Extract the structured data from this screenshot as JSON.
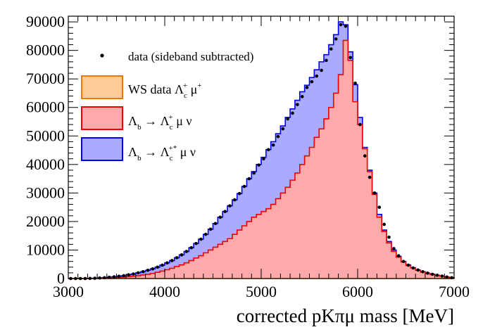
{
  "chart_data": {
    "type": "bar",
    "xlabel": "corrected pKπμ mass [MeV]",
    "ylabel": "",
    "xlim": [
      3000,
      7000
    ],
    "ylim": [
      0,
      92000
    ],
    "x_ticks": [
      3000,
      4000,
      5000,
      6000,
      7000
    ],
    "y_ticks": [
      0,
      10000,
      20000,
      30000,
      40000,
      50000,
      60000,
      70000,
      80000,
      90000
    ],
    "bin_width": 50,
    "grid": false,
    "legend_position": "top-left",
    "legend": {
      "data": "data (sideband subtracted)",
      "ws": "WS data Λc+ μ+",
      "lc": "Λb → Λc+ μ ν",
      "lcstar": "Λb → Λc+* μ ν"
    },
    "series": [
      {
        "key": "lcstar",
        "label": "Λb → Λc+* μ ν",
        "color": "#aaaaff",
        "line_color": "#0000ee",
        "style": "stacked-histogram-total",
        "values": [
          0,
          0,
          0,
          0,
          50,
          100,
          200,
          300,
          450,
          600,
          800,
          1000,
          1300,
          1600,
          2000,
          2400,
          2900,
          3400,
          4000,
          4700,
          5500,
          6300,
          7300,
          8300,
          9500,
          10800,
          12300,
          13800,
          15500,
          17300,
          19300,
          21500,
          23500,
          25500,
          27600,
          29800,
          32300,
          35000,
          37500,
          40000,
          42500,
          45200,
          48000,
          50800,
          53500,
          56500,
          59500,
          62500,
          65500,
          67800,
          70500,
          73200,
          76000,
          78500,
          82000,
          85500,
          90000,
          89000,
          79500,
          68000,
          56500,
          46000,
          38000,
          30000,
          22500,
          17000,
          13000,
          10000,
          7800,
          6000,
          4800,
          3800,
          3000,
          2400,
          1900,
          1500,
          1150,
          850,
          550,
          300
        ]
      },
      {
        "key": "lc",
        "label": "Λb → Λc+ μ ν",
        "color": "#ffaaaa",
        "line_color": "#ee0000",
        "style": "histogram",
        "values": [
          0,
          0,
          0,
          0,
          20,
          40,
          80,
          130,
          200,
          280,
          380,
          500,
          650,
          800,
          1000,
          1250,
          1500,
          1800,
          2200,
          2600,
          3100,
          3600,
          4200,
          4800,
          5500,
          6300,
          7200,
          8000,
          9000,
          10000,
          11000,
          12000,
          13000,
          14000,
          15500,
          17000,
          18500,
          20000,
          21500,
          22500,
          23500,
          24500,
          26000,
          28000,
          30000,
          32000,
          34500,
          37000,
          40000,
          43000,
          46000,
          49500,
          52500,
          56000,
          60000,
          65000,
          71500,
          83500,
          76500,
          62000,
          54000,
          45500,
          37500,
          29500,
          21500,
          16500,
          12500,
          9500,
          7500,
          5800,
          4600,
          3700,
          2900,
          2300,
          1800,
          1400,
          1100,
          800,
          500,
          300
        ]
      },
      {
        "key": "ws",
        "label": "WS data Λc+ μ+",
        "color": "#ffcc99",
        "line_color": "#ee7700",
        "style": "histogram",
        "values": [
          0,
          0,
          0,
          0,
          0,
          0,
          0,
          0,
          0,
          0,
          0,
          0,
          0,
          0,
          0,
          0,
          0,
          0,
          0,
          0,
          0,
          0,
          0,
          0,
          0,
          0,
          0,
          0,
          0,
          0,
          0,
          0,
          0,
          0,
          0,
          0,
          0,
          0,
          0,
          0,
          0,
          0,
          0,
          0,
          0,
          0,
          0,
          0,
          0,
          0,
          0,
          0,
          0,
          0,
          0,
          0,
          0,
          0,
          0,
          0,
          0,
          0,
          0,
          0,
          0,
          0,
          0,
          0,
          0,
          0,
          0,
          0,
          0,
          0,
          0,
          0,
          0,
          0,
          0,
          0
        ]
      },
      {
        "key": "data",
        "label": "data (sideband subtracted)",
        "color": "#000000",
        "style": "points",
        "values": [
          0,
          0,
          0,
          0,
          50,
          100,
          200,
          300,
          450,
          600,
          800,
          1000,
          1300,
          1600,
          2000,
          2400,
          2900,
          3400,
          4000,
          4700,
          5500,
          6300,
          7300,
          8300,
          9500,
          10800,
          12300,
          13800,
          15500,
          17300,
          19300,
          21500,
          23500,
          25500,
          27600,
          29800,
          32300,
          35000,
          37000,
          39800,
          42000,
          45200,
          46800,
          49800,
          52500,
          56000,
          58000,
          61000,
          63800,
          67000,
          69000,
          71000,
          73000,
          76500,
          80500,
          84000,
          89000,
          88500,
          77500,
          68500,
          54000,
          43000,
          35500,
          30000,
          25000,
          19000,
          14500,
          10500,
          8000,
          6000,
          4700,
          3700,
          3000,
          2400,
          1900,
          1500,
          1150,
          850,
          550,
          300
        ]
      }
    ]
  }
}
